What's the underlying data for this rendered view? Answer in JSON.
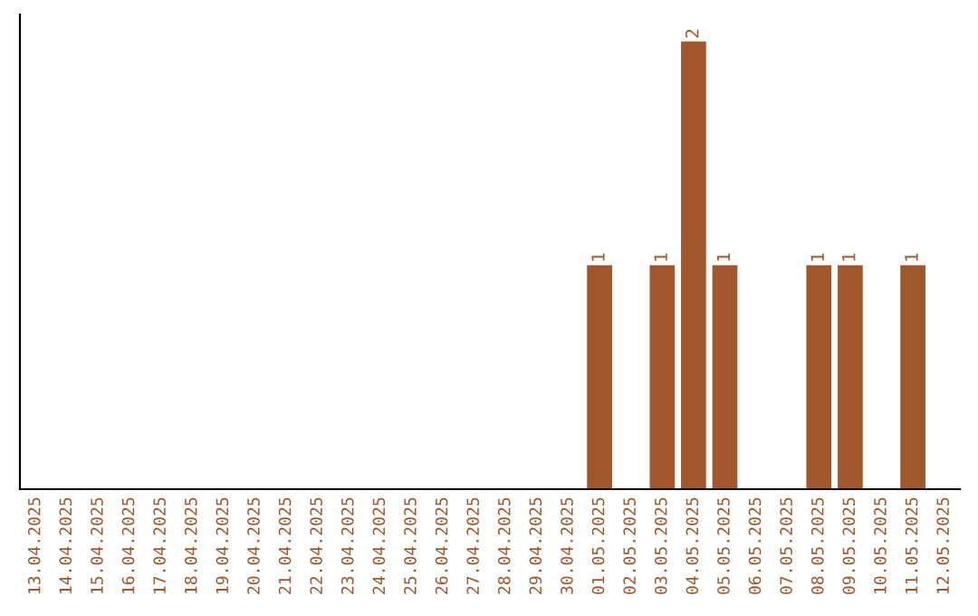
{
  "chart_data": {
    "type": "bar",
    "categories": [
      "13.04.2025",
      "14.04.2025",
      "15.04.2025",
      "16.04.2025",
      "17.04.2025",
      "18.04.2025",
      "19.04.2025",
      "20.04.2025",
      "21.04.2025",
      "22.04.2025",
      "23.04.2025",
      "24.04.2025",
      "25.04.2025",
      "26.04.2025",
      "27.04.2025",
      "28.04.2025",
      "29.04.2025",
      "30.04.2025",
      "01.05.2025",
      "02.05.2025",
      "03.05.2025",
      "04.05.2025",
      "05.05.2025",
      "06.05.2025",
      "07.05.2025",
      "08.05.2025",
      "09.05.2025",
      "10.05.2025",
      "11.05.2025",
      "12.05.2025"
    ],
    "values": [
      null,
      null,
      null,
      null,
      null,
      null,
      null,
      null,
      null,
      null,
      null,
      null,
      null,
      null,
      null,
      null,
      null,
      null,
      1,
      null,
      1,
      2,
      1,
      null,
      null,
      1,
      1,
      null,
      1,
      null
    ],
    "data_labels": true,
    "color": "#a0572b",
    "tick_labels": "x",
    "grid": false,
    "legend": false
  }
}
